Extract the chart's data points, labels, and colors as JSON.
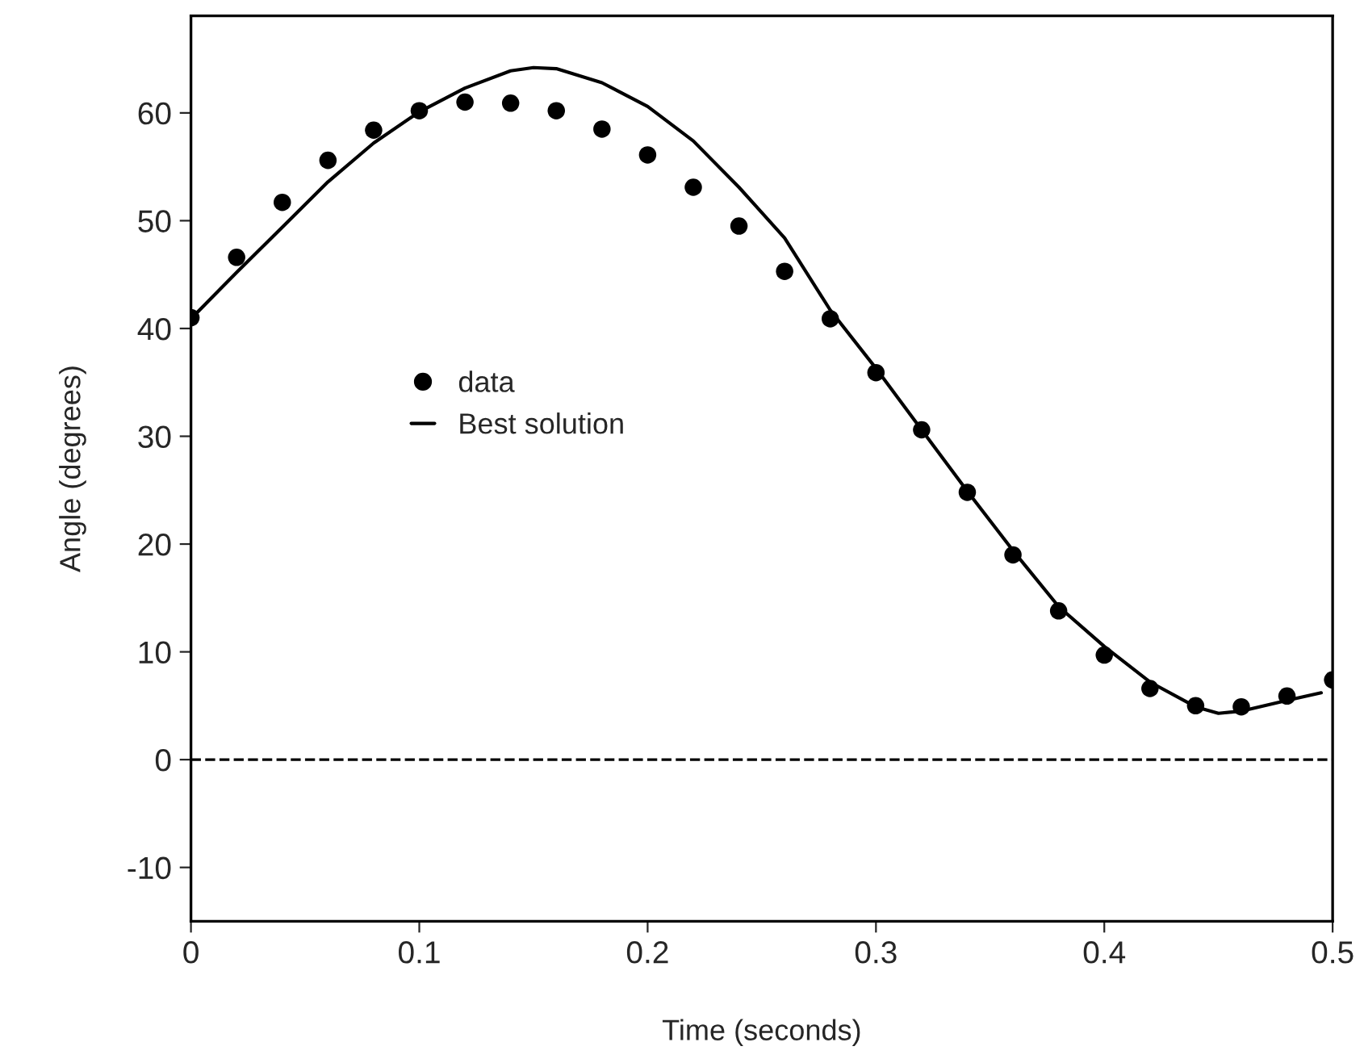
{
  "chart_data": {
    "type": "scatter",
    "xlabel": "Time (seconds)",
    "ylabel": "Angle (degrees)",
    "xlim": [
      0,
      0.5
    ],
    "xticks": [
      0,
      0.1,
      0.2,
      0.3,
      0.4,
      0.5
    ],
    "ylim": [
      -15,
      69
    ],
    "yticks": [
      -10,
      0,
      10,
      20,
      30,
      40,
      50,
      60
    ],
    "grid": false,
    "legend": "center left",
    "series": [
      {
        "name": "data",
        "marker": "circle",
        "color": "#000000",
        "x": [
          0,
          0.02,
          0.04,
          0.06,
          0.08,
          0.1,
          0.12,
          0.14,
          0.16,
          0.18,
          0.2,
          0.22,
          0.24,
          0.26,
          0.28,
          0.3,
          0.32,
          0.34,
          0.36,
          0.38,
          0.4,
          0.42,
          0.44,
          0.46,
          0.48,
          0.5
        ],
        "values": [
          41.0,
          46.6,
          51.7,
          55.6,
          58.4,
          60.2,
          61.0,
          60.9,
          60.2,
          58.5,
          56.1,
          53.1,
          49.5,
          45.3,
          40.9,
          35.9,
          30.6,
          24.8,
          19.0,
          13.8,
          9.7,
          6.6,
          5.0,
          4.9,
          5.9,
          7.4
        ]
      },
      {
        "name": "Best solution",
        "type": "line",
        "line_style": "solid",
        "color": "#000000",
        "x": [
          0,
          0.02,
          0.04,
          0.06,
          0.08,
          0.1,
          0.12,
          0.14,
          0.15,
          0.16,
          0.18,
          0.2,
          0.22,
          0.24,
          0.26,
          0.28,
          0.3,
          0.32,
          0.34,
          0.36,
          0.38,
          0.4,
          0.42,
          0.44,
          0.45,
          0.46,
          0.48,
          0.495
        ],
        "values": [
          40.9,
          45.2,
          49.4,
          53.6,
          57.2,
          60.1,
          62.3,
          63.9,
          64.2,
          64.1,
          62.8,
          60.6,
          57.4,
          53.1,
          48.4,
          41.7,
          36.3,
          30.6,
          24.9,
          19.4,
          14.2,
          10.5,
          7.2,
          4.9,
          4.3,
          4.5,
          5.5,
          6.2
        ]
      }
    ],
    "ref_lines": [
      {
        "axis": "y",
        "value": 0,
        "line_style": "dashed",
        "color": "#000000"
      }
    ]
  }
}
